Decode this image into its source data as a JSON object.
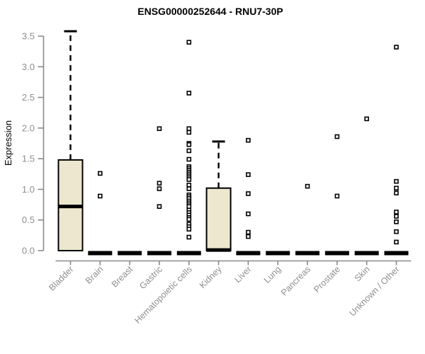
{
  "chart_data": {
    "type": "boxplot",
    "title": "ENSG00000252644 - RNU7-30P",
    "ylabel": "Expression",
    "xlabel": "",
    "ylim": [
      0.0,
      3.5
    ],
    "ytick_labels": [
      "0.0",
      "0.5",
      "1.0",
      "1.5",
      "2.0",
      "2.5",
      "3.0",
      "3.5"
    ],
    "grid": "off",
    "legend": "none",
    "colors": {
      "box_fill": "#ece7ce",
      "box_stroke": "#000000",
      "median_color": "#000000",
      "whisker_color": "#000000",
      "outlier_stroke": "#000000",
      "outlier_fill": "#ffffff",
      "axis_color": "#8a8a8a",
      "tick_text_color": "#8f8f8f",
      "title_color": "#000000",
      "background": "#ffffff"
    },
    "categories": [
      {
        "label": "Bladder",
        "box": {
          "low": 0.0,
          "q1": 0.0,
          "median": 0.72,
          "q3": 1.48,
          "high": 3.58
        },
        "points": []
      },
      {
        "label": "Brain",
        "box": null,
        "points": [
          1.26,
          0.89
        ]
      },
      {
        "label": "Breast",
        "box": null,
        "points": []
      },
      {
        "label": "Gastric",
        "box": null,
        "points": [
          1.99,
          1.1,
          1.01,
          0.72
        ]
      },
      {
        "label": "Hematopoietic cells",
        "box": null,
        "points": [
          3.4,
          2.57,
          1.99,
          1.93,
          1.75,
          1.73,
          1.63,
          1.49,
          1.37,
          1.34,
          1.31,
          1.28,
          1.25,
          1.22,
          1.19,
          1.16,
          1.07,
          1.01,
          0.91,
          0.88,
          0.85,
          0.81,
          0.78,
          0.75,
          0.72,
          0.66,
          0.62,
          0.58,
          0.54,
          0.51,
          0.43,
          0.39,
          0.35,
          0.22
        ]
      },
      {
        "label": "Kidney",
        "box": {
          "low": 0.0,
          "q1": 0.0,
          "median": 0.01,
          "q3": 1.02,
          "high": 1.78
        },
        "points": []
      },
      {
        "label": "Liver",
        "box": null,
        "points": [
          1.8,
          1.24,
          0.93,
          0.6,
          0.3,
          0.23
        ]
      },
      {
        "label": "Lung",
        "box": null,
        "points": []
      },
      {
        "label": "Pancreas",
        "box": null,
        "points": [
          1.05
        ]
      },
      {
        "label": "Prostate",
        "box": null,
        "points": [
          1.86,
          0.89
        ]
      },
      {
        "label": "Skin",
        "box": null,
        "points": [
          2.15
        ]
      },
      {
        "label": "Unknown / Other",
        "box": null,
        "points": [
          3.32,
          1.13,
          1.02,
          0.94,
          0.63,
          0.56,
          0.47,
          0.31,
          0.14
        ]
      }
    ]
  }
}
